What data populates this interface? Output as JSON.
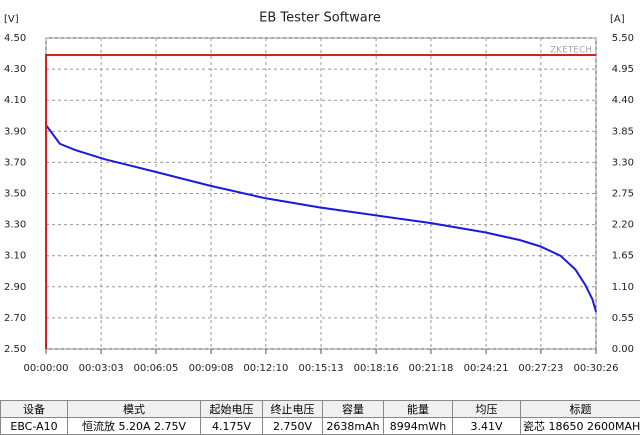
{
  "chart_data": {
    "type": "line",
    "title": "EB Tester Software",
    "y_label": "[V]",
    "y2_label": "[A]",
    "watermark": "ZKETECH",
    "grid": true,
    "xlim": [
      0,
      1826
    ],
    "xticks": [
      {
        "value": 0,
        "label": "00:00:00"
      },
      {
        "value": 183,
        "label": "00:03:03"
      },
      {
        "value": 365,
        "label": "00:06:05"
      },
      {
        "value": 548,
        "label": "00:09:08"
      },
      {
        "value": 730,
        "label": "00:12:10"
      },
      {
        "value": 913,
        "label": "00:15:13"
      },
      {
        "value": 1096,
        "label": "00:18:16"
      },
      {
        "value": 1278,
        "label": "00:21:18"
      },
      {
        "value": 1461,
        "label": "00:24:21"
      },
      {
        "value": 1643,
        "label": "00:27:23"
      },
      {
        "value": 1826,
        "label": "00:30:26"
      }
    ],
    "ylim": [
      2.5,
      4.5
    ],
    "yticks": [
      {
        "value": 2.5,
        "label": "2.50"
      },
      {
        "value": 2.7,
        "label": "2.70"
      },
      {
        "value": 2.9,
        "label": "2.90"
      },
      {
        "value": 3.1,
        "label": "3.10"
      },
      {
        "value": 3.3,
        "label": "3.30"
      },
      {
        "value": 3.5,
        "label": "3.50"
      },
      {
        "value": 3.7,
        "label": "3.70"
      },
      {
        "value": 3.9,
        "label": "3.90"
      },
      {
        "value": 4.1,
        "label": "4.10"
      },
      {
        "value": 4.3,
        "label": "4.30"
      },
      {
        "value": 4.5,
        "label": "4.50"
      }
    ],
    "y2lim": [
      0,
      5.5
    ],
    "y2ticks": [
      {
        "value": 0,
        "label": "0.00"
      },
      0.55,
      {
        "value": 1.1,
        "label": "1.10"
      },
      1.65,
      {
        "value": 2.2,
        "label": "2.20"
      },
      2.75,
      {
        "value": 3.3,
        "label": "3.30"
      },
      3.85,
      {
        "value": 4.4,
        "label": "4.40"
      },
      4.95,
      {
        "value": 5.5,
        "label": "5.50"
      }
    ],
    "series": [
      {
        "color": "#1a1adc",
        "x": [
          0,
          46,
          96,
          196,
          362,
          545,
          727,
          910,
          1093,
          1276,
          1458,
          1574,
          1641,
          1708,
          1758,
          1791,
          1814,
          1826
        ],
        "values": [
          3.94,
          3.82,
          3.78,
          3.72,
          3.64,
          3.55,
          3.47,
          3.41,
          3.36,
          3.31,
          3.25,
          3.2,
          3.16,
          3.1,
          3.01,
          2.91,
          2.82,
          2.74
        ]
      },
      {
        "color": "#d42020",
        "axis": "y2",
        "x": [
          0,
          0,
          1826
        ],
        "values": [
          0,
          5.2,
          5.2
        ]
      }
    ]
  },
  "table": {
    "headers": [
      "设备",
      "模式",
      "起始电压",
      "终止电压",
      "容量",
      "能量",
      "均压",
      "标题"
    ],
    "rows": [
      [
        "EBC-A10",
        "恒流放 5.20A 2.75V",
        "4.175V",
        "2.750V",
        "2638mAh",
        "8994mWh",
        "3.41V",
        "瓷芯 18650 2600MAH"
      ]
    ]
  }
}
